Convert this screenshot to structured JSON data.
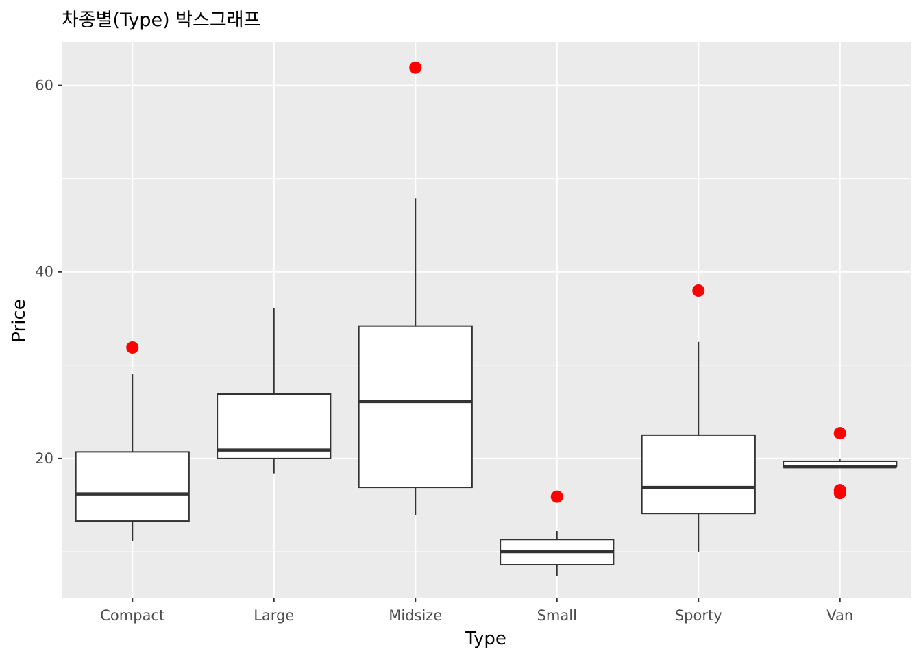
{
  "chart_data": {
    "type": "boxplot",
    "title": "차종별(Type) 박스그래프",
    "xlabel": "Type",
    "ylabel": "Price",
    "ylim": [
      5.0,
      64.6
    ],
    "yticks": [
      20,
      40,
      60
    ],
    "grid": true,
    "categories": [
      "Compact",
      "Large",
      "Midsize",
      "Small",
      "Sporty",
      "Van"
    ],
    "boxes": [
      {
        "category": "Compact",
        "lower_whisker": 11.1,
        "q1": 13.3,
        "median": 16.2,
        "q3": 20.7,
        "upper_whisker": 29.1,
        "outliers": [
          31.9
        ]
      },
      {
        "category": "Large",
        "lower_whisker": 18.4,
        "q1": 20.0,
        "median": 20.9,
        "q3": 26.9,
        "upper_whisker": 36.1,
        "outliers": []
      },
      {
        "category": "Midsize",
        "lower_whisker": 13.9,
        "q1": 16.9,
        "median": 26.1,
        "q3": 34.2,
        "upper_whisker": 47.9,
        "outliers": [
          61.9
        ]
      },
      {
        "category": "Small",
        "lower_whisker": 7.4,
        "q1": 8.6,
        "median": 10.0,
        "q3": 11.3,
        "upper_whisker": 12.2,
        "outliers": [
          15.9
        ]
      },
      {
        "category": "Sporty",
        "lower_whisker": 10.0,
        "q1": 14.1,
        "median": 16.9,
        "q3": 22.5,
        "upper_whisker": 32.5,
        "outliers": [
          38.0
        ]
      },
      {
        "category": "Van",
        "lower_whisker": 19.0,
        "q1": 19.1,
        "median": 19.1,
        "q3": 19.7,
        "upper_whisker": 19.9,
        "outliers": [
          22.7,
          16.6,
          16.3
        ]
      }
    ],
    "colors": {
      "panel": "#ebebeb",
      "grid": "#ffffff",
      "box_fill": "#ffffff",
      "box_line": "#333333",
      "outlier": "#ff0000"
    }
  }
}
